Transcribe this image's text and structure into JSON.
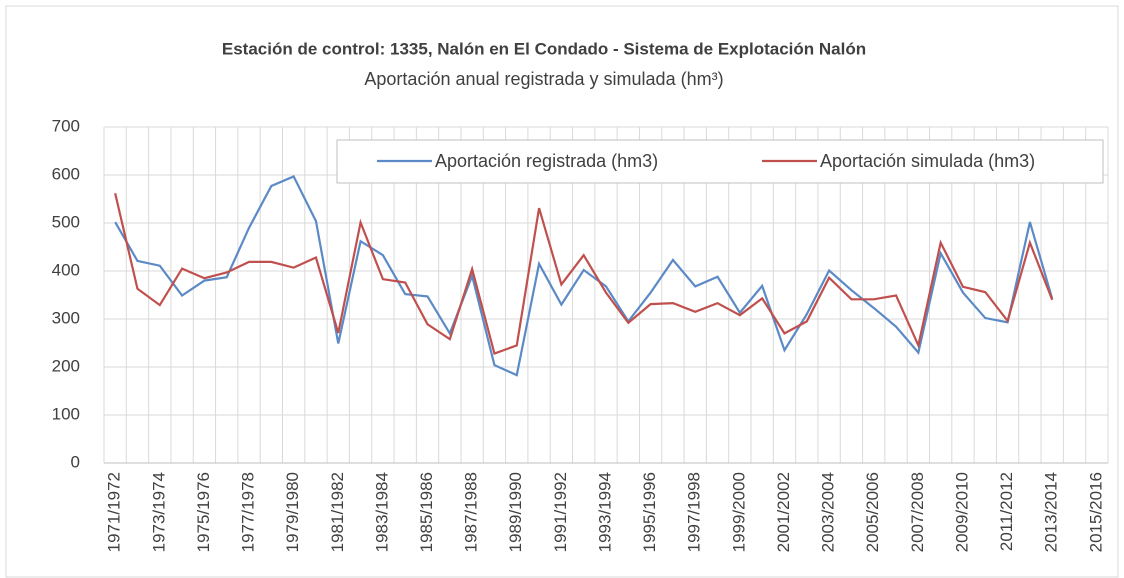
{
  "chart_data": {
    "type": "line",
    "title": "Estación de control: 1335, Nalón en El Condado - Sistema de Explotación Nalón",
    "subtitle": "Aportación anual registrada y simulada (hm³)",
    "categories": [
      "1971/1972",
      null,
      "1973/1974",
      null,
      "1975/1976",
      null,
      "1977/1978",
      null,
      "1979/1980",
      null,
      "1981/1982",
      null,
      "1983/1984",
      null,
      "1985/1986",
      null,
      "1987/1988",
      null,
      "1989/1990",
      null,
      "1991/1992",
      null,
      "1993/1994",
      null,
      "1995/1996",
      null,
      "1997/1998",
      null,
      "1999/2000",
      null,
      "2001/2002",
      null,
      "2003/2004",
      null,
      "2005/2006",
      null,
      "2007/2008",
      null,
      "2009/2010",
      null,
      "2011/2012",
      null,
      "2013/2014",
      null,
      "2015/2016"
    ],
    "series": [
      {
        "name": "Aportación registrada (hm3)",
        "color": "#5b8ac6",
        "values": [
          502,
          421,
          411,
          349,
          380,
          387,
          490,
          577,
          597,
          504,
          249,
          462,
          433,
          352,
          347,
          270,
          390,
          204,
          183,
          415,
          330,
          402,
          368,
          295,
          355,
          423,
          368,
          388,
          313,
          369,
          235,
          310,
          401,
          360,
          323,
          284,
          230,
          437,
          355,
          302,
          293,
          502,
          342,
          null,
          null
        ]
      },
      {
        "name": "Aportación simulada (hm3)",
        "color": "#c0504d",
        "values": [
          562,
          363,
          329,
          405,
          385,
          397,
          419,
          419,
          407,
          428,
          271,
          501,
          383,
          376,
          289,
          258,
          404,
          228,
          245,
          531,
          372,
          433,
          355,
          292,
          331,
          333,
          315,
          333,
          308,
          343,
          270,
          295,
          386,
          341,
          341,
          349,
          245,
          459,
          367,
          356,
          296,
          459,
          340,
          null,
          null
        ]
      }
    ],
    "ylim": [
      0,
      700
    ],
    "yticks": [
      0,
      100,
      200,
      300,
      400,
      500,
      600,
      700
    ],
    "grid": true,
    "legend": "top-right"
  }
}
